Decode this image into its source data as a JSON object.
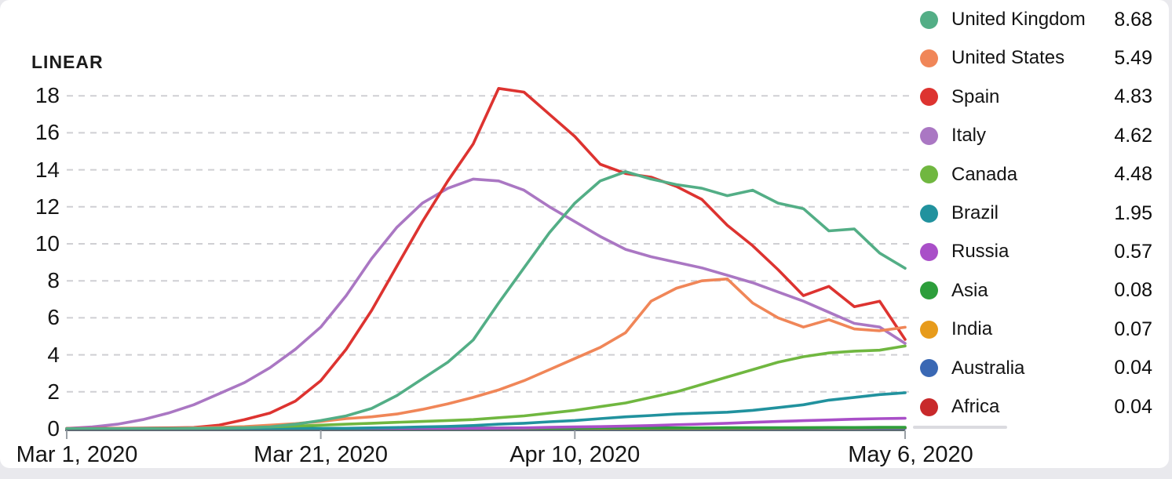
{
  "page": {
    "scale_label": "LINEAR"
  },
  "chart_data": {
    "type": "line",
    "title": "",
    "xlabel": "",
    "ylabel": "",
    "scale": "LINEAR",
    "grid": "dashed-horizontal",
    "legend_position": "right",
    "ylim": [
      0,
      18
    ],
    "y_ticks": [
      0,
      2,
      4,
      6,
      8,
      10,
      12,
      14,
      16,
      18
    ],
    "x_axis_unit": "days since Mar 1, 2020",
    "x_range_days": [
      0,
      66
    ],
    "x_tick_labels": [
      {
        "day": 0,
        "label": "Mar 1, 2020"
      },
      {
        "day": 20,
        "label": "Mar 21, 2020"
      },
      {
        "day": 40,
        "label": "Apr 10, 2020"
      },
      {
        "day": 66,
        "label": "May 6, 2020"
      }
    ],
    "x_days": [
      0,
      2,
      4,
      6,
      8,
      10,
      12,
      14,
      16,
      18,
      20,
      22,
      24,
      26,
      28,
      30,
      32,
      34,
      36,
      38,
      40,
      42,
      44,
      46,
      48,
      50,
      52,
      54,
      56,
      58,
      60,
      62,
      64,
      66
    ],
    "series": [
      {
        "name": "United Kingdom",
        "value_label": "8.68",
        "color": "#53ae86",
        "values": [
          0.01,
          0.01,
          0.01,
          0.02,
          0.02,
          0.03,
          0.04,
          0.06,
          0.1,
          0.25,
          0.45,
          0.7,
          1.1,
          1.8,
          2.7,
          3.6,
          4.8,
          6.8,
          8.7,
          10.6,
          12.2,
          13.4,
          13.9,
          13.5,
          13.2,
          13.0,
          12.6,
          12.9,
          12.2,
          11.9,
          10.7,
          10.8,
          9.5,
          8.68
        ]
      },
      {
        "name": "United States",
        "value_label": "5.49",
        "color": "#f08658",
        "values": [
          0.01,
          0.01,
          0.02,
          0.02,
          0.03,
          0.05,
          0.08,
          0.12,
          0.2,
          0.28,
          0.4,
          0.55,
          0.65,
          0.8,
          1.05,
          1.35,
          1.7,
          2.1,
          2.6,
          3.2,
          3.8,
          4.4,
          5.2,
          6.9,
          7.6,
          8.0,
          8.1,
          6.8,
          6.0,
          5.5,
          5.9,
          5.4,
          5.3,
          5.49
        ]
      },
      {
        "name": "Spain",
        "value_label": "4.83",
        "color": "#dd3330",
        "values": [
          0.02,
          0.02,
          0.03,
          0.04,
          0.05,
          0.07,
          0.2,
          0.5,
          0.85,
          1.5,
          2.6,
          4.3,
          6.4,
          8.8,
          11.2,
          13.4,
          15.4,
          18.4,
          18.2,
          17.0,
          15.8,
          14.3,
          13.8,
          13.6,
          13.1,
          12.4,
          11.0,
          9.9,
          8.6,
          7.2,
          7.7,
          6.6,
          6.9,
          4.83
        ]
      },
      {
        "name": "Italy",
        "value_label": "4.62",
        "color": "#aa77c3",
        "values": [
          0.02,
          0.1,
          0.25,
          0.5,
          0.85,
          1.3,
          1.9,
          2.5,
          3.3,
          4.3,
          5.5,
          7.2,
          9.2,
          10.9,
          12.2,
          13.0,
          13.5,
          13.4,
          12.9,
          12.0,
          11.2,
          10.4,
          9.7,
          9.3,
          9.0,
          8.7,
          8.3,
          7.9,
          7.4,
          6.9,
          6.3,
          5.7,
          5.5,
          4.62
        ]
      },
      {
        "name": "Canada",
        "value_label": "4.48",
        "color": "#70b740",
        "values": [
          0.02,
          0.02,
          0.03,
          0.03,
          0.04,
          0.05,
          0.06,
          0.08,
          0.1,
          0.15,
          0.2,
          0.25,
          0.3,
          0.35,
          0.4,
          0.45,
          0.5,
          0.6,
          0.7,
          0.85,
          1.0,
          1.2,
          1.4,
          1.7,
          2.0,
          2.4,
          2.8,
          3.2,
          3.6,
          3.9,
          4.1,
          4.2,
          4.25,
          4.48
        ]
      },
      {
        "name": "Brazil",
        "value_label": "1.95",
        "color": "#21929e",
        "values": [
          0.01,
          0.01,
          0.01,
          0.02,
          0.02,
          0.02,
          0.02,
          0.02,
          0.02,
          0.02,
          0.02,
          0.03,
          0.05,
          0.07,
          0.1,
          0.13,
          0.18,
          0.25,
          0.3,
          0.38,
          0.45,
          0.55,
          0.65,
          0.72,
          0.8,
          0.85,
          0.9,
          1.0,
          1.15,
          1.3,
          1.55,
          1.7,
          1.85,
          1.95
        ]
      },
      {
        "name": "Russia",
        "value_label": "0.57",
        "color": "#a94fc8",
        "values": [
          0.0,
          0.0,
          0.0,
          0.0,
          0.0,
          0.0,
          0.01,
          0.01,
          0.01,
          0.01,
          0.01,
          0.02,
          0.02,
          0.02,
          0.02,
          0.03,
          0.03,
          0.04,
          0.05,
          0.08,
          0.1,
          0.12,
          0.15,
          0.18,
          0.22,
          0.26,
          0.3,
          0.35,
          0.4,
          0.44,
          0.48,
          0.52,
          0.55,
          0.57
        ]
      },
      {
        "name": "Asia",
        "value_label": "0.08",
        "color": "#2d9e3b",
        "values": [
          0.01,
          0.01,
          0.01,
          0.01,
          0.01,
          0.02,
          0.02,
          0.02,
          0.02,
          0.02,
          0.03,
          0.03,
          0.03,
          0.03,
          0.03,
          0.04,
          0.04,
          0.04,
          0.04,
          0.04,
          0.04,
          0.05,
          0.05,
          0.05,
          0.05,
          0.05,
          0.06,
          0.06,
          0.06,
          0.06,
          0.07,
          0.07,
          0.08,
          0.08
        ]
      },
      {
        "name": "India",
        "value_label": "0.07",
        "color": "#e79b1b",
        "values": [
          0.0,
          0.0,
          0.0,
          0.0,
          0.0,
          0.0,
          0.0,
          0.01,
          0.01,
          0.01,
          0.01,
          0.01,
          0.01,
          0.01,
          0.02,
          0.02,
          0.02,
          0.02,
          0.02,
          0.03,
          0.03,
          0.03,
          0.03,
          0.04,
          0.04,
          0.04,
          0.05,
          0.05,
          0.05,
          0.06,
          0.06,
          0.06,
          0.07,
          0.07
        ]
      },
      {
        "name": "Australia",
        "value_label": "0.04",
        "color": "#3a68b4",
        "values": [
          0.0,
          0.0,
          0.0,
          0.01,
          0.01,
          0.01,
          0.01,
          0.02,
          0.02,
          0.02,
          0.03,
          0.03,
          0.03,
          0.03,
          0.04,
          0.04,
          0.04,
          0.04,
          0.04,
          0.04,
          0.04,
          0.04,
          0.04,
          0.04,
          0.04,
          0.04,
          0.04,
          0.04,
          0.04,
          0.04,
          0.04,
          0.04,
          0.04,
          0.04
        ]
      },
      {
        "name": "Africa",
        "value_label": "0.04",
        "color": "#c8292b",
        "values": [
          0.0,
          0.0,
          0.0,
          0.0,
          0.0,
          0.0,
          0.0,
          0.0,
          0.01,
          0.01,
          0.01,
          0.01,
          0.01,
          0.01,
          0.01,
          0.01,
          0.02,
          0.02,
          0.02,
          0.02,
          0.02,
          0.02,
          0.02,
          0.03,
          0.03,
          0.03,
          0.03,
          0.03,
          0.03,
          0.03,
          0.04,
          0.04,
          0.04,
          0.04
        ]
      }
    ],
    "style": {
      "grid_color": "#cfcfd3",
      "axis_color": "#5c6b73",
      "tick_color": "#9aa0a6",
      "text_color": "#161616"
    }
  }
}
